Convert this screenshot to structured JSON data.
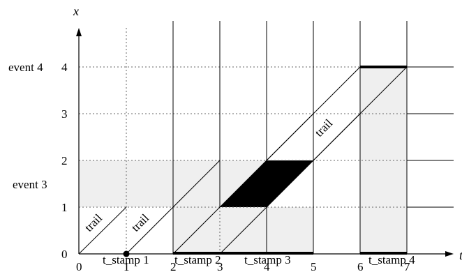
{
  "axes": {
    "x_var": "x",
    "t_var": "t",
    "t_ticks": [
      "0",
      "1",
      "2",
      "3",
      "4",
      "5",
      "6",
      "7"
    ],
    "x_ticks": [
      "0",
      "1",
      "2",
      "3",
      "4"
    ]
  },
  "labels": {
    "event3": "event 3",
    "event4": "event 4",
    "t_stamp1": "t_stamp 1",
    "t_stamp2": "t_stamp 2",
    "t_stamp3": "t_stamp 3",
    "t_stamp4": "t_stamp 4",
    "trail": "trail"
  },
  "colors": {
    "shade": "#efefef",
    "ink": "#000000",
    "grid": "#666666"
  }
}
